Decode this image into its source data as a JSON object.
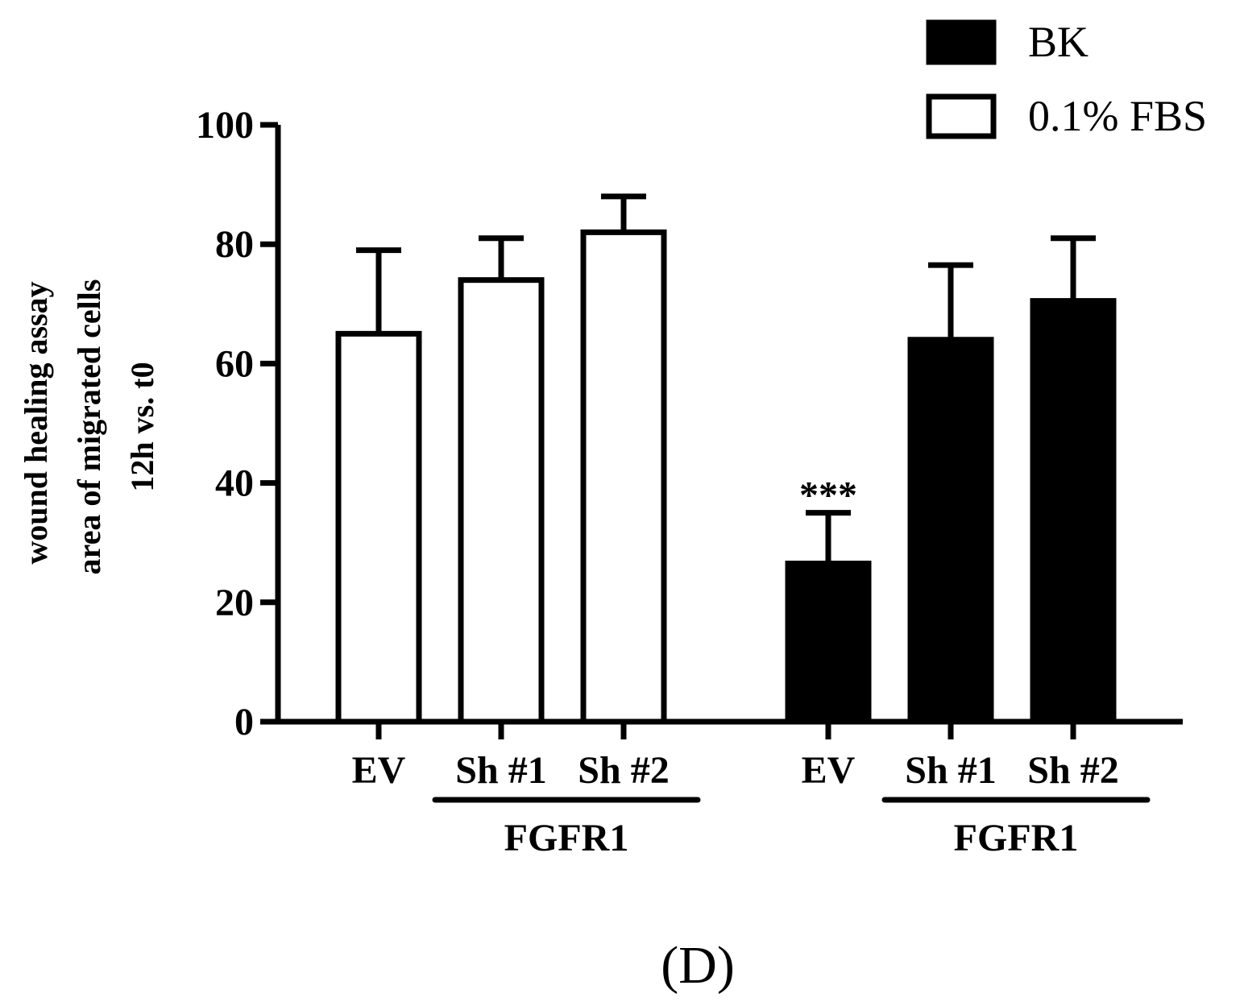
{
  "chart_data": {
    "type": "bar",
    "title": "",
    "ylabel_lines": [
      "wound healing assay",
      "area of migrated cells",
      "12h vs. t0"
    ],
    "xlabel": "",
    "ylim": [
      0,
      100
    ],
    "yticks": [
      0,
      20,
      40,
      60,
      80,
      100
    ],
    "groups": [
      {
        "series": "0.1% FBS",
        "categories": [
          "EV",
          "Sh #1",
          "Sh #2"
        ],
        "values": [
          65,
          74,
          82
        ],
        "errors": [
          14,
          7,
          6
        ],
        "bracket_label": "FGFR1",
        "annotations": [
          "",
          "",
          ""
        ]
      },
      {
        "series": "BK",
        "categories": [
          "EV",
          "Sh #1",
          "Sh #2"
        ],
        "values": [
          26.5,
          64,
          70.5
        ],
        "errors": [
          8.5,
          12.5,
          10.5
        ],
        "bracket_label": "FGFR1",
        "annotations": [
          "***",
          "",
          ""
        ]
      }
    ],
    "legend": [
      {
        "label": "BK",
        "fill": "#000000"
      },
      {
        "label": "0.1% FBS",
        "fill": "#ffffff"
      }
    ],
    "legend_position": "top-right",
    "panel_label": "(D)"
  }
}
